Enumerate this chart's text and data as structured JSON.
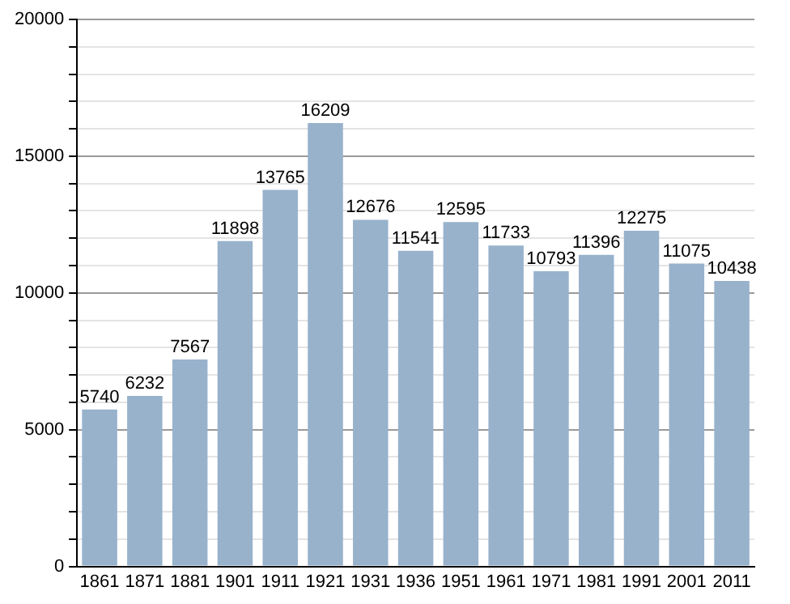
{
  "chart_data": {
    "type": "bar",
    "categories": [
      "1861",
      "1871",
      "1881",
      "1901",
      "1911",
      "1921",
      "1931",
      "1936",
      "1951",
      "1961",
      "1971",
      "1981",
      "1991",
      "2001",
      "2011"
    ],
    "values": [
      5740,
      6232,
      7567,
      11898,
      13765,
      16209,
      12676,
      11541,
      12595,
      11733,
      10793,
      11396,
      12275,
      11075,
      10438
    ],
    "color": "#98b2cc",
    "ylim": [
      0,
      20000
    ],
    "yticks": [
      0,
      {
        "value": 1000,
        "label": null
      },
      {
        "value": 2000,
        "label": null
      },
      {
        "value": 3000,
        "label": null
      },
      {
        "value": 4000,
        "label": null
      },
      5000,
      {
        "value": 6000,
        "label": null
      },
      {
        "value": 7000,
        "label": null
      },
      {
        "value": 8000,
        "label": null
      },
      {
        "value": 9000,
        "label": null
      },
      10000,
      {
        "value": 11000,
        "label": null
      },
      {
        "value": 12000,
        "label": null
      },
      {
        "value": 13000,
        "label": null
      },
      {
        "value": 14000,
        "label": null
      },
      15000,
      {
        "value": 16000,
        "label": null
      },
      {
        "value": 17000,
        "label": null
      },
      {
        "value": 18000,
        "label": null
      },
      {
        "value": 19000,
        "label": null
      },
      20000
    ],
    "grid": "y",
    "data_labels": true
  }
}
